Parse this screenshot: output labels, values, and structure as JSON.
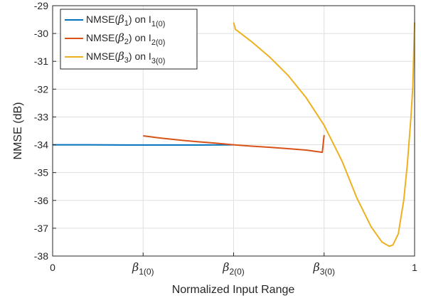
{
  "chart_data": {
    "type": "line",
    "title": "",
    "xlabel": "Normalized Input Range",
    "ylabel": "NMSE (dB)",
    "xlim": [
      0,
      1
    ],
    "ylim": [
      -38,
      -29
    ],
    "grid": true,
    "legend_placement": "top-left",
    "x_ticks": [
      {
        "value": 0,
        "label": "0"
      },
      {
        "value": 0.25,
        "label": "β1(0)",
        "main": "β",
        "sub": "1(0)"
      },
      {
        "value": 0.5,
        "label": "β2(0)",
        "main": "β",
        "sub": "2(0)"
      },
      {
        "value": 0.75,
        "label": "β3(0)",
        "main": "β",
        "sub": "3(0)"
      },
      {
        "value": 1,
        "label": "1"
      }
    ],
    "y_ticks": [
      {
        "value": -29,
        "label": "-29"
      },
      {
        "value": -30,
        "label": "-30"
      },
      {
        "value": -31,
        "label": "-31"
      },
      {
        "value": -32,
        "label": "-32"
      },
      {
        "value": -33,
        "label": "-33"
      },
      {
        "value": -34,
        "label": "-34"
      },
      {
        "value": -35,
        "label": "-35"
      },
      {
        "value": -36,
        "label": "-36"
      },
      {
        "value": -37,
        "label": "-37"
      },
      {
        "value": -38,
        "label": "-38"
      }
    ],
    "series": [
      {
        "name": "NMSE(β1) on I1(0)",
        "legend": {
          "pre": "NMSE(",
          "beta": "β",
          "bsub": "1",
          "mid": ") on I",
          "isub": "1(0)"
        },
        "color": "#0072BD",
        "points": [
          [
            0,
            -34.0
          ],
          [
            0.1,
            -34.0
          ],
          [
            0.2,
            -34.01
          ],
          [
            0.3,
            -34.01
          ],
          [
            0.4,
            -34.01
          ],
          [
            0.5,
            -34.0
          ]
        ]
      },
      {
        "name": "NMSE(β2) on I2(0)",
        "legend": {
          "pre": "NMSE(",
          "beta": "β",
          "bsub": "2",
          "mid": ") on I",
          "isub": "2(0)"
        },
        "color": "#D95319",
        "points": [
          [
            0.25,
            -33.68
          ],
          [
            0.3,
            -33.76
          ],
          [
            0.35,
            -33.83
          ],
          [
            0.4,
            -33.89
          ],
          [
            0.45,
            -33.94
          ],
          [
            0.5,
            -34.0
          ],
          [
            0.55,
            -34.05
          ],
          [
            0.6,
            -34.09
          ],
          [
            0.65,
            -34.14
          ],
          [
            0.7,
            -34.19
          ],
          [
            0.745,
            -34.27
          ],
          [
            0.75,
            -33.65
          ]
        ]
      },
      {
        "name": "NMSE(β3) on I3(0)",
        "legend": {
          "pre": "NMSE(",
          "beta": "β",
          "bsub": "3",
          "mid": ") on I",
          "isub": "3(0)"
        },
        "color": "#EDB120",
        "points": [
          [
            0.5,
            -29.6
          ],
          [
            0.505,
            -29.85
          ],
          [
            0.52,
            -30.0
          ],
          [
            0.55,
            -30.3
          ],
          [
            0.6,
            -30.85
          ],
          [
            0.65,
            -31.5
          ],
          [
            0.7,
            -32.3
          ],
          [
            0.75,
            -33.3
          ],
          [
            0.8,
            -34.6
          ],
          [
            0.84,
            -35.9
          ],
          [
            0.88,
            -36.95
          ],
          [
            0.91,
            -37.5
          ],
          [
            0.93,
            -37.65
          ],
          [
            0.94,
            -37.6
          ],
          [
            0.955,
            -37.2
          ],
          [
            0.97,
            -36.0
          ],
          [
            0.98,
            -34.7
          ],
          [
            0.99,
            -33.0
          ],
          [
            0.995,
            -31.9
          ],
          [
            1.0,
            -29.6
          ]
        ]
      }
    ]
  }
}
